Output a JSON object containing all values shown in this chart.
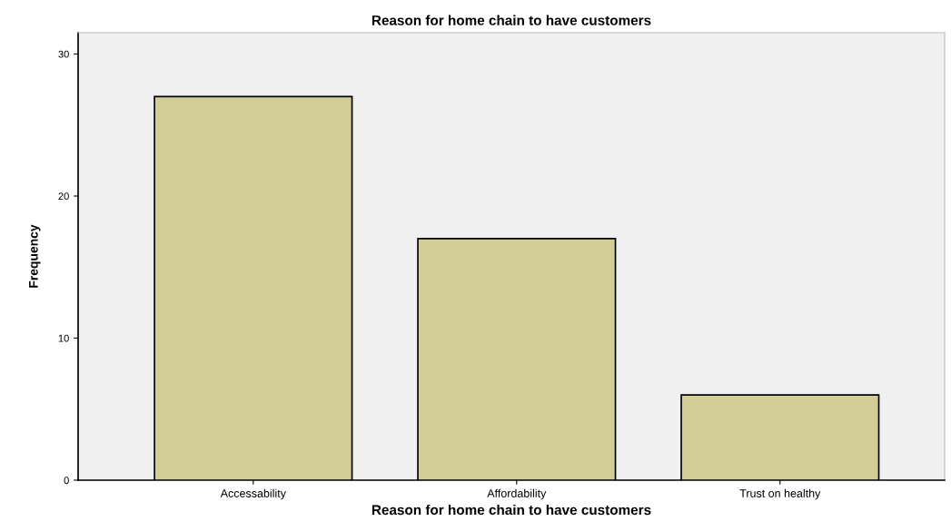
{
  "chart_data": {
    "type": "bar",
    "title": "Reason for home chain to have customers",
    "xlabel": "Reason for home chain to have customers",
    "ylabel": "Frequency",
    "categories": [
      "Accessability",
      "Affordability",
      "Trust on healthy"
    ],
    "values": [
      27,
      17,
      6
    ],
    "color": "#d3ce97",
    "ylim": [
      0,
      31.5
    ],
    "yticks": [
      0,
      10,
      20,
      30
    ],
    "grid": false,
    "legend": false
  }
}
